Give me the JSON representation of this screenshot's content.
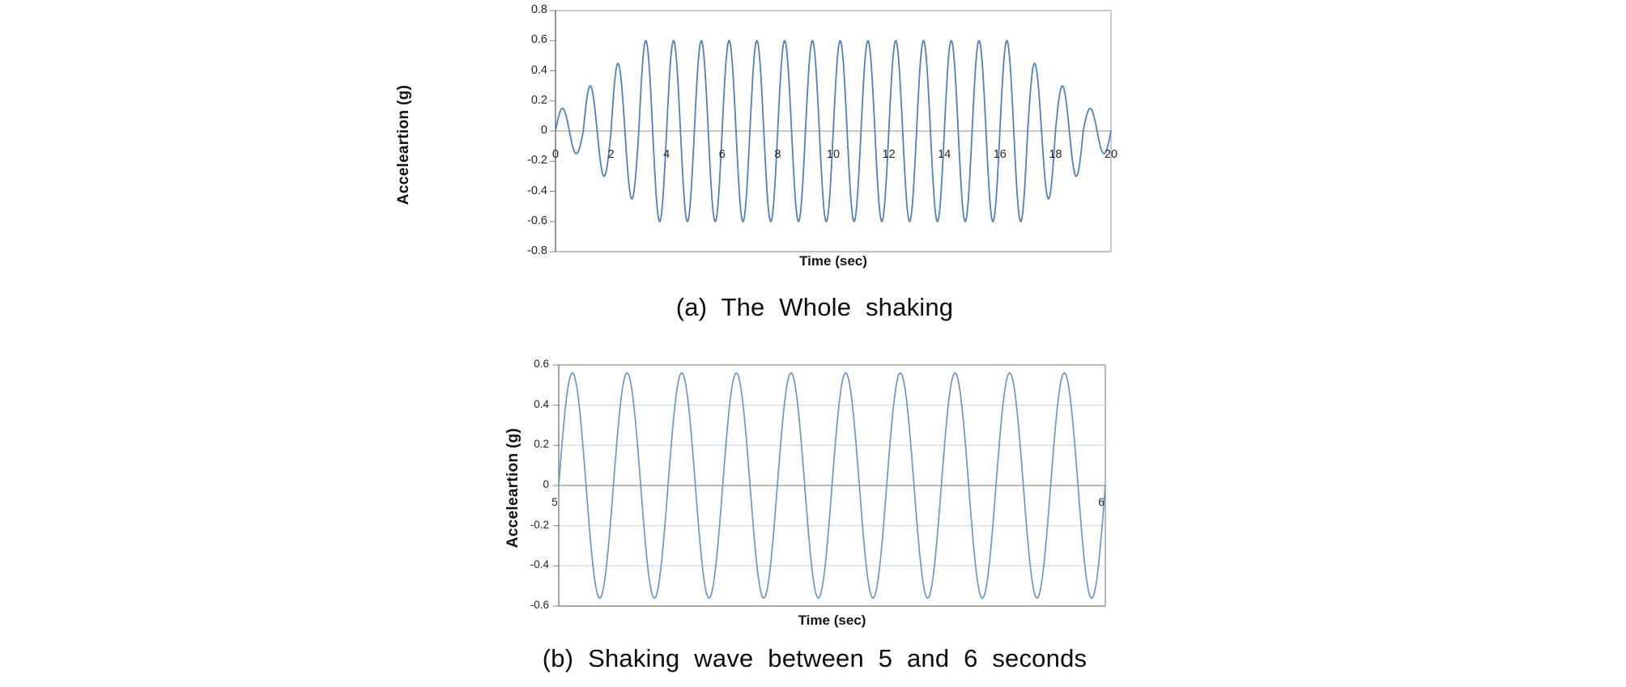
{
  "page": {
    "background": "#ffffff"
  },
  "chart_data": [
    {
      "id": "whole-shaking",
      "type": "line",
      "caption": "(a) The Whole shaking",
      "xlabel": "Time (sec)",
      "ylabel": "Acceleartion (g)",
      "xlim": [
        0,
        20
      ],
      "ylim": [
        -0.8,
        0.8
      ],
      "x_ticks": [
        0,
        2,
        4,
        6,
        8,
        10,
        12,
        14,
        16,
        18,
        20
      ],
      "y_ticks": [
        0.8,
        0.6,
        0.4,
        0.2,
        0,
        -0.2,
        -0.4,
        -0.6,
        -0.8
      ],
      "grid": false,
      "legend": "none",
      "wave": {
        "form": "sine",
        "period_sec": 1,
        "frequency_hz": 1,
        "phase": "sin(2*pi*t)",
        "peak_g": 0.6,
        "cycle_amplitudes_g": [
          0.15,
          0.3,
          0.45,
          0.6,
          0.6,
          0.6,
          0.6,
          0.6,
          0.6,
          0.6,
          0.6,
          0.6,
          0.6,
          0.6,
          0.6,
          0.6,
          0.6,
          0.45,
          0.3,
          0.15
        ]
      },
      "line_color": "#4f81bd",
      "axis_color": "#6a6a6a",
      "border_color": "#ababab",
      "zero_line_color": "#a8a8a8",
      "tick_color": "#808080"
    },
    {
      "id": "shaking-5-to-6-sec",
      "type": "line",
      "caption": "(b) Shaking wave between 5 and 6 seconds",
      "xlabel": "Time (sec)",
      "ylabel": "Acceleartion (g)",
      "xlim": [
        5,
        6
      ],
      "ylim": [
        -0.6,
        0.6
      ],
      "x_ticks": [
        5,
        6
      ],
      "y_ticks": [
        0.6,
        0.4,
        0.2,
        0,
        -0.2,
        -0.4,
        -0.6
      ],
      "grid": true,
      "legend": "none",
      "wave": {
        "form": "sine",
        "frequency_hz": 10,
        "amplitude_g": 0.56,
        "t_start": 5,
        "t_end": 6,
        "phase": "sin(2*pi*10*(t-5))"
      },
      "line_color": "#6c96c8",
      "axis_color": "#808080",
      "border_color": "#8c8c8c",
      "zero_line_color": "#909090",
      "gridline_color": "#c6d9f1",
      "tick_color": "#808080"
    }
  ]
}
